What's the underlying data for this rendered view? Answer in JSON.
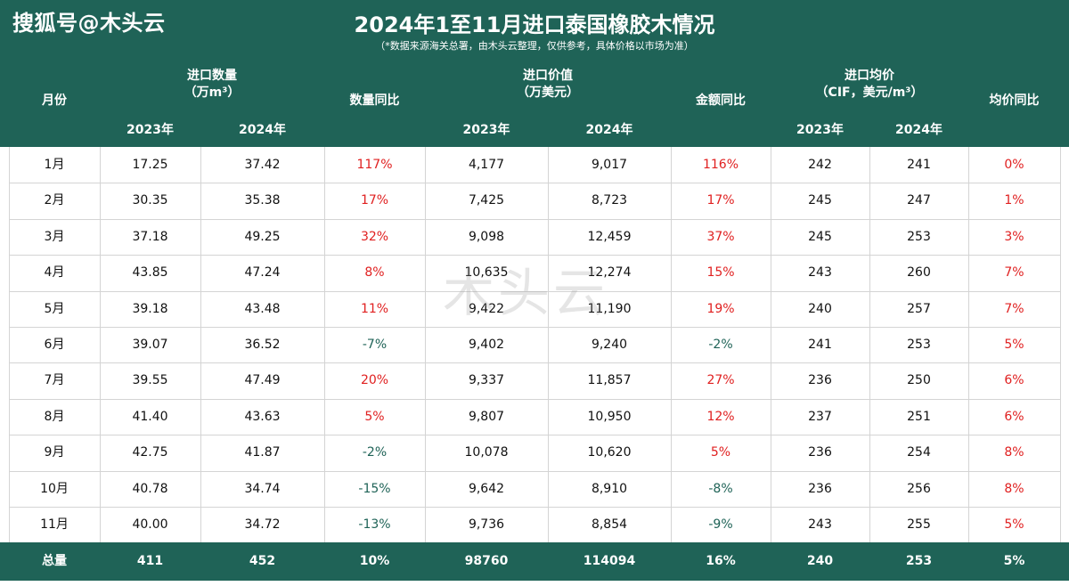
{
  "watermark_top": "搜狐号@木头云",
  "title": "2024年1至11月进口泰国橡胶木情况",
  "subtitle": "（*数据来源海关总署，由木头云整理，仅供参考，具体价格以市场为准）",
  "headers": {
    "month": "月份",
    "qty_group_line1": "进口数量",
    "qty_group_line2": "（万m³）",
    "qty_yoy": "数量同比",
    "value_group_line1": "进口价值",
    "value_group_line2": "（万美元）",
    "value_yoy": "金额同比",
    "price_group_line1": "进口均价",
    "price_group_line2": "（CIF，美元/m³）",
    "price_yoy": "均价同比",
    "y2023": "2023年",
    "y2024": "2024年"
  },
  "rows": [
    {
      "month": "1月",
      "q23": "17.25",
      "q24": "37.42",
      "qy": "117%",
      "v23": "4,177",
      "v24": "9,017",
      "vy": "116%",
      "p23": "242",
      "p24": "241",
      "py": "0%"
    },
    {
      "month": "2月",
      "q23": "30.35",
      "q24": "35.38",
      "qy": "17%",
      "v23": "7,425",
      "v24": "8,723",
      "vy": "17%",
      "p23": "245",
      "p24": "247",
      "py": "1%"
    },
    {
      "month": "3月",
      "q23": "37.18",
      "q24": "49.25",
      "qy": "32%",
      "v23": "9,098",
      "v24": "12,459",
      "vy": "37%",
      "p23": "245",
      "p24": "253",
      "py": "3%"
    },
    {
      "month": "4月",
      "q23": "43.85",
      "q24": "47.24",
      "qy": "8%",
      "v23": "10,635",
      "v24": "12,274",
      "vy": "15%",
      "p23": "243",
      "p24": "260",
      "py": "7%"
    },
    {
      "month": "5月",
      "q23": "39.18",
      "q24": "43.48",
      "qy": "11%",
      "v23": "9,422",
      "v24": "11,190",
      "vy": "19%",
      "p23": "240",
      "p24": "257",
      "py": "7%"
    },
    {
      "month": "6月",
      "q23": "39.07",
      "q24": "36.52",
      "qy": "-7%",
      "v23": "9,402",
      "v24": "9,240",
      "vy": "-2%",
      "p23": "241",
      "p24": "253",
      "py": "5%"
    },
    {
      "month": "7月",
      "q23": "39.55",
      "q24": "47.49",
      "qy": "20%",
      "v23": "9,337",
      "v24": "11,857",
      "vy": "27%",
      "p23": "236",
      "p24": "250",
      "py": "6%"
    },
    {
      "month": "8月",
      "q23": "41.40",
      "q24": "43.63",
      "qy": "5%",
      "v23": "9,807",
      "v24": "10,950",
      "vy": "12%",
      "p23": "237",
      "p24": "251",
      "py": "6%"
    },
    {
      "month": "9月",
      "q23": "42.75",
      "q24": "41.87",
      "qy": "-2%",
      "v23": "10,078",
      "v24": "10,620",
      "vy": "5%",
      "p23": "236",
      "p24": "254",
      "py": "8%"
    },
    {
      "month": "10月",
      "q23": "40.78",
      "q24": "34.74",
      "qy": "-15%",
      "v23": "9,642",
      "v24": "8,910",
      "vy": "-8%",
      "p23": "236",
      "p24": "256",
      "py": "8%"
    },
    {
      "month": "11月",
      "q23": "40.00",
      "q24": "34.72",
      "qy": "-13%",
      "v23": "9,736",
      "v24": "8,854",
      "vy": "-9%",
      "p23": "243",
      "p24": "255",
      "py": "5%"
    }
  ],
  "total": {
    "month": "总量",
    "q23": "411",
    "q24": "452",
    "qy": "10%",
    "v23": "98760",
    "v24": "114094",
    "vy": "16%",
    "p23": "240",
    "p24": "253",
    "py": "5%"
  },
  "watermark_center": "木头云",
  "colors": {
    "header_bg": "#1f6357",
    "positive": "#e02020",
    "negative": "#1f6357"
  }
}
